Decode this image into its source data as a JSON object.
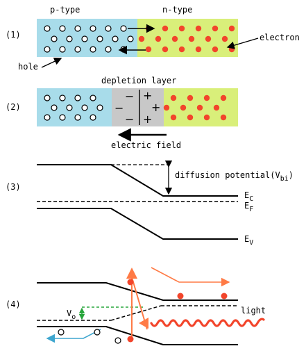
{
  "panel1": {
    "number": "(1)",
    "p_label": "p-type",
    "n_label": "n-type",
    "electron_label": "electron",
    "hole_label": "hole"
  },
  "panel2": {
    "number": "(2)",
    "depletion_label": "depletion layer",
    "field_label": "electric field",
    "minus_sign": "−",
    "plus_sign": "+"
  },
  "panel3": {
    "number": "(3)",
    "potential_label": "diffusion potential(V",
    "potential_sub": "bi",
    "potential_close": ")",
    "ec_main": "E",
    "ec_sub": "C",
    "ef_main": "E",
    "ef_sub": "F",
    "ev_main": "E",
    "ev_sub": "V"
  },
  "panel4": {
    "number": "(4)",
    "vo_main": "V",
    "vo_sub": "o",
    "light_label": "light"
  },
  "colors": {
    "p_region": "#a8dcea",
    "n_region": "#d9ef7a",
    "depletion": "#c8c8c8",
    "electron": "#f2452b",
    "hole": "#ffffff",
    "photon_arrow": "#ff7a45",
    "electron_path": "#ff7a45",
    "hole_path": "#3ea6cf",
    "vo_marker": "#26a53a"
  }
}
